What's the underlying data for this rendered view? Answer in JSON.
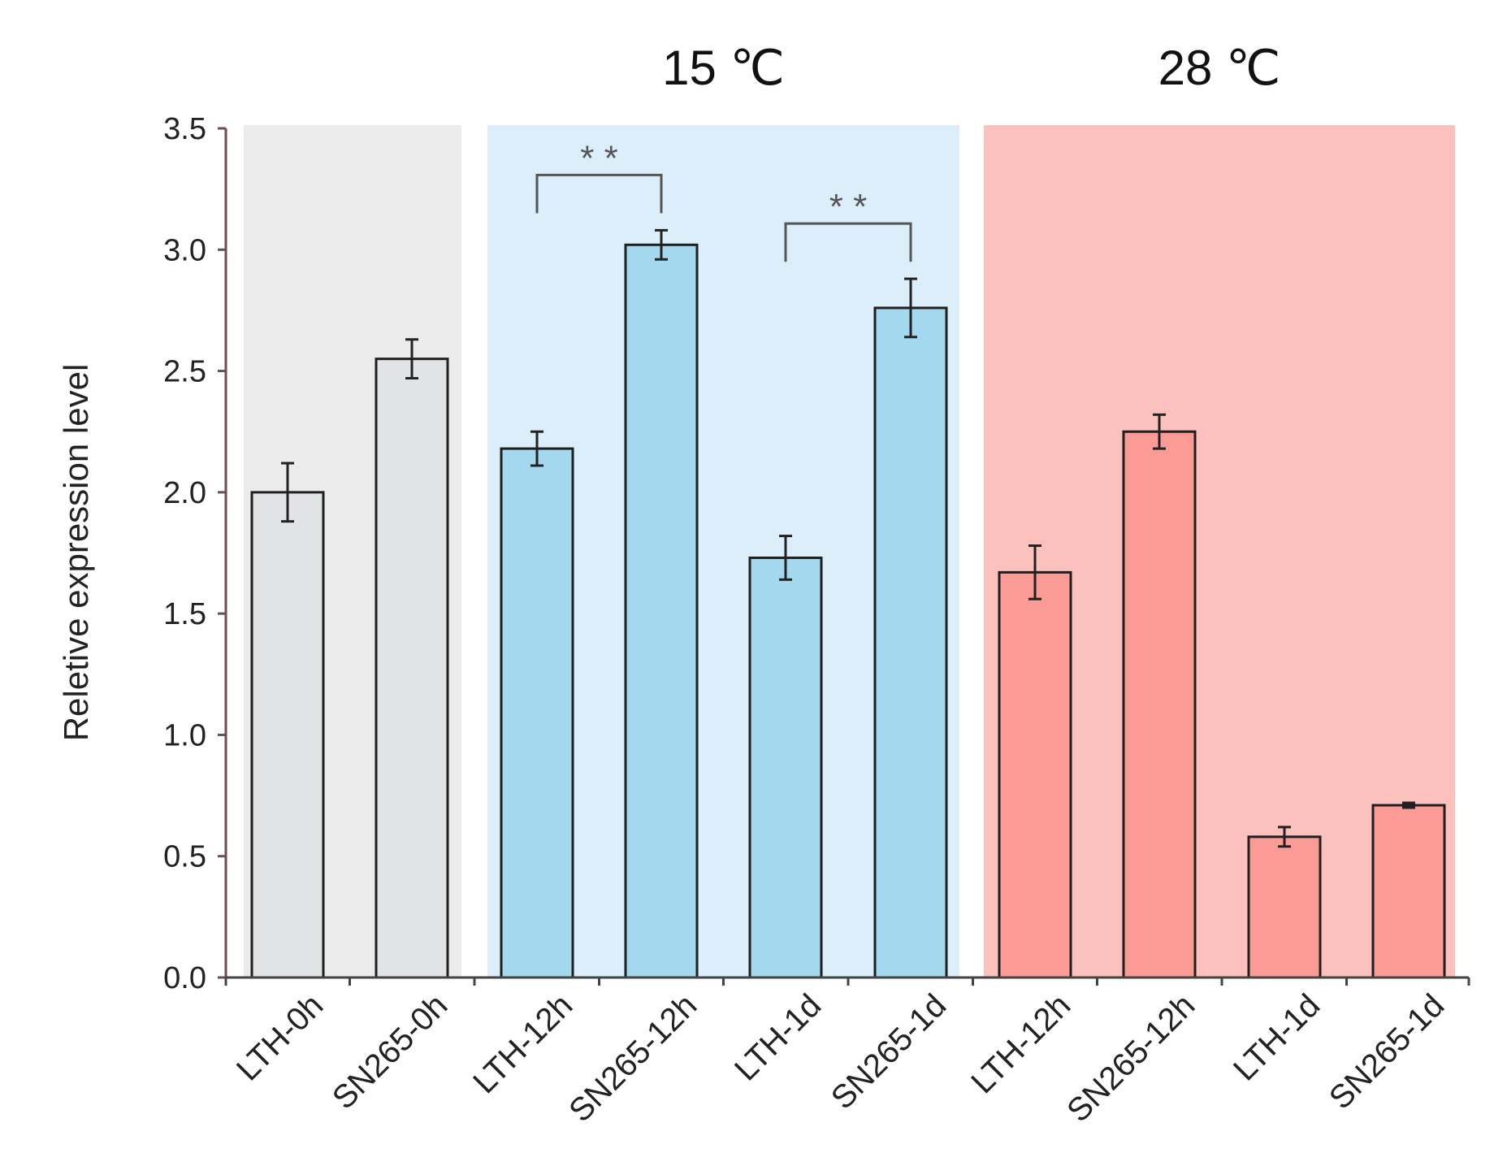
{
  "chart_data": {
    "type": "bar",
    "ylabel": "Reletive expression level",
    "xlabel": "",
    "ylim": [
      0,
      3.5
    ],
    "yticks": [
      "0.0",
      "0.5",
      "1.0",
      "1.5",
      "2.0",
      "2.5",
      "3.0",
      "3.5"
    ],
    "groups": [
      {
        "title": "",
        "bg_color": "#ececec",
        "bar_color": "#e2e3e5",
        "indices": [
          0,
          1
        ]
      },
      {
        "title": "15 ℃",
        "bg_color": "#dbeef9",
        "bar_color": "#a4d8ee",
        "indices": [
          2,
          3,
          4,
          5
        ]
      },
      {
        "title": "28 ℃",
        "bg_color": "#fcc1bc",
        "bar_color": "#fa9b95",
        "indices": [
          6,
          7,
          8,
          9
        ]
      }
    ],
    "categories": [
      "LTH-0h",
      "SN265-0h",
      "LTH-12h",
      "SN265-12h",
      "LTH-1d",
      "SN265-1d",
      "LTH-12h",
      "SN265-12h",
      "LTH-1d",
      "SN265-1d"
    ],
    "values": [
      2.0,
      2.55,
      2.18,
      3.02,
      1.73,
      2.76,
      1.67,
      2.25,
      0.58,
      0.71
    ],
    "errors": [
      0.12,
      0.08,
      0.07,
      0.06,
      0.09,
      0.12,
      0.11,
      0.07,
      0.04,
      0.01
    ],
    "significance": [
      {
        "from": 2,
        "to": 3,
        "label": "* *"
      },
      {
        "from": 4,
        "to": 5,
        "label": "* *"
      }
    ]
  }
}
